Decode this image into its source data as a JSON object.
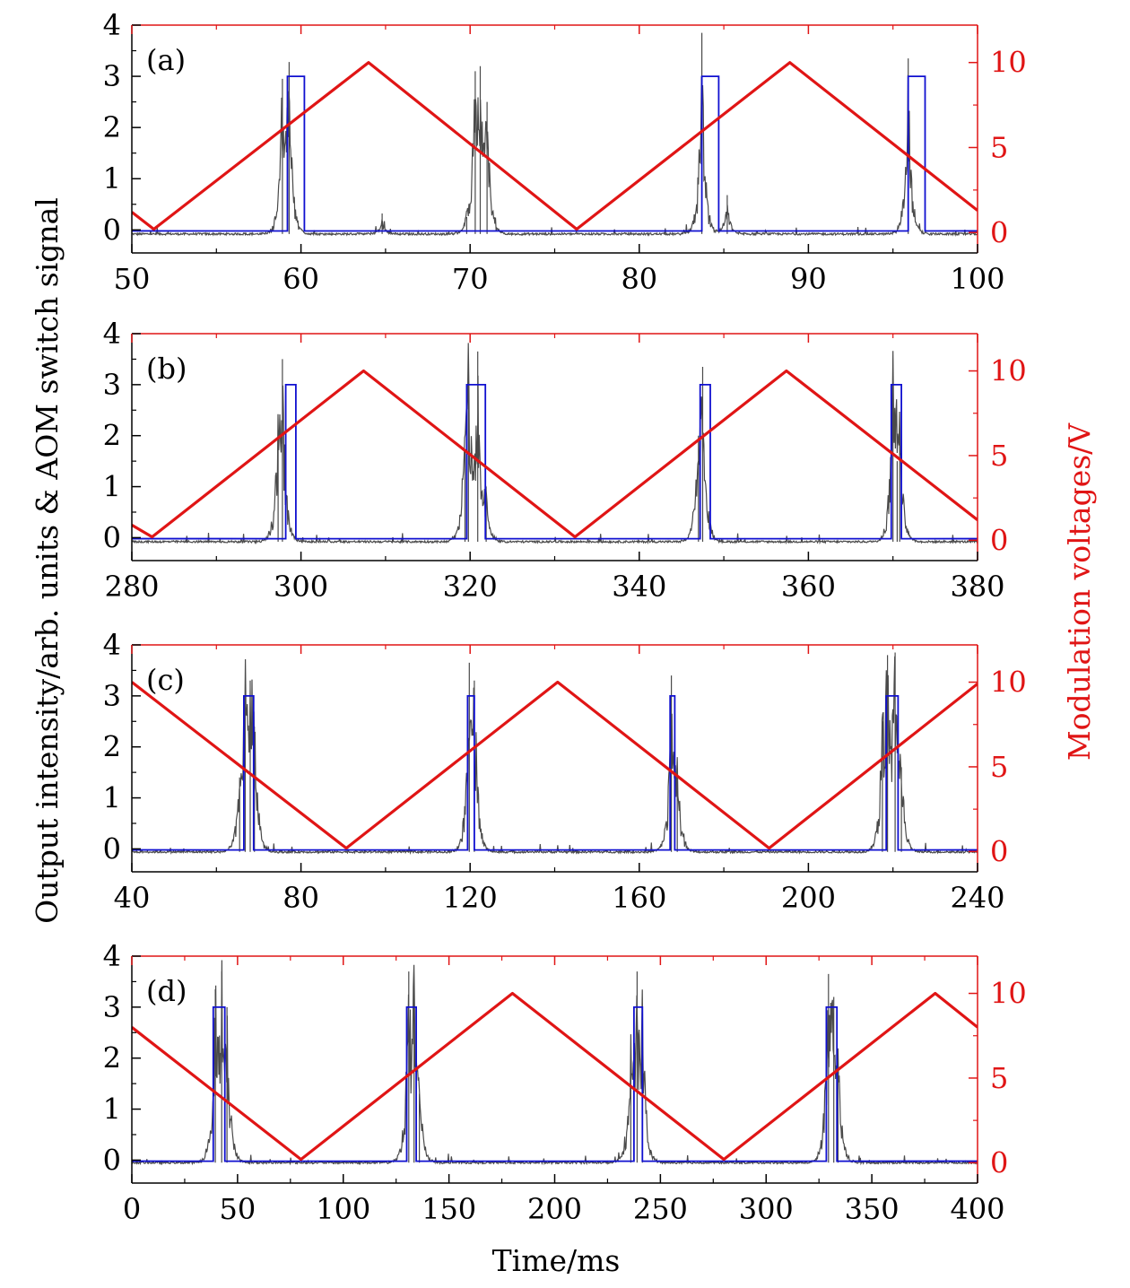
{
  "colors": {
    "intensity": "#4a4a4a",
    "aom": "#1010d0",
    "modulation": "#e01515",
    "axis_left": "#000000",
    "axis_right": "#e01515"
  },
  "figure": {
    "ylabel_left": "Output intensity/arb. units & AOM switch signal",
    "ylabel_right": "Modulation voltages/V",
    "xlabel": "Time/ms"
  },
  "chart_data": [
    {
      "type": "line",
      "panel_label": "(a)",
      "xlim": [
        50,
        100
      ],
      "x_ticks": [
        "50",
        "60",
        "70",
        "80",
        "90",
        "100"
      ],
      "ylim_left": [
        -0.45,
        4.0
      ],
      "y_ticks_left": [
        "0",
        "1",
        "2",
        "3",
        "4"
      ],
      "ylim_right": [
        -1.2,
        12.2
      ],
      "y_ticks_right": [
        "0",
        "5",
        "10"
      ],
      "grid": false,
      "series": [
        {
          "axis": "right",
          "color": "#e01515",
          "role": "modulation",
          "x": [
            50,
            51.3,
            64.0,
            76.3,
            88.9,
            100
          ],
          "y": [
            1.2,
            0.2,
            10.0,
            0.2,
            10.0,
            1.3
          ]
        },
        {
          "axis": "left",
          "color": "#1010d0",
          "role": "aom",
          "base": -0.02,
          "level": 3.0,
          "pulses": [
            [
              59.2,
              60.2
            ],
            [
              83.7,
              84.7
            ],
            [
              95.9,
              96.9
            ]
          ]
        },
        {
          "axis": "left",
          "color": "#4a4a4a",
          "role": "intensity",
          "baseline": -0.08,
          "peaks": [
            [
              58.9,
              2.95
            ],
            [
              59.3,
              3.28
            ],
            [
              70.3,
              3.1
            ],
            [
              70.6,
              3.2
            ],
            [
              71.0,
              2.5
            ],
            [
              83.7,
              3.85
            ],
            [
              85.2,
              0.68
            ],
            [
              95.9,
              3.35
            ],
            [
              64.8,
              0.32
            ],
            [
              69.8,
              0.25
            ]
          ]
        }
      ]
    },
    {
      "type": "line",
      "panel_label": "(b)",
      "xlim": [
        280,
        380
      ],
      "x_ticks": [
        "280",
        "300",
        "320",
        "340",
        "360",
        "380"
      ],
      "ylim_left": [
        -0.45,
        4.0
      ],
      "y_ticks_left": [
        "0",
        "1",
        "2",
        "3",
        "4"
      ],
      "ylim_right": [
        -1.2,
        12.2
      ],
      "y_ticks_right": [
        "0",
        "5",
        "10"
      ],
      "grid": false,
      "series": [
        {
          "axis": "right",
          "color": "#e01515",
          "role": "modulation",
          "x": [
            280,
            282.4,
            307.4,
            332.4,
            357.4,
            380
          ],
          "y": [
            0.9,
            0.2,
            10.0,
            0.2,
            10.0,
            1.2
          ]
        },
        {
          "axis": "left",
          "color": "#1010d0",
          "role": "aom",
          "base": -0.02,
          "level": 3.0,
          "pulses": [
            [
              298.2,
              299.4
            ],
            [
              319.6,
              321.8
            ],
            [
              347.2,
              348.4
            ],
            [
              369.8,
              371.0
            ]
          ]
        },
        {
          "axis": "left",
          "color": "#4a4a4a",
          "role": "intensity",
          "baseline": -0.08,
          "peaks": [
            [
              297.8,
              3.5
            ],
            [
              297.3,
              2.0
            ],
            [
              319.8,
              3.7
            ],
            [
              320.9,
              3.65
            ],
            [
              319.4,
              1.7
            ],
            [
              321.9,
              1.0
            ],
            [
              347.5,
              3.35
            ],
            [
              347.0,
              2.0
            ],
            [
              370.0,
              3.3
            ],
            [
              370.8,
              2.05
            ],
            [
              370.5,
              1.5
            ]
          ]
        }
      ]
    },
    {
      "type": "line",
      "panel_label": "(c)",
      "xlim": [
        40,
        240
      ],
      "x_ticks": [
        "40",
        "80",
        "120",
        "160",
        "200",
        "240"
      ],
      "ylim_left": [
        -0.45,
        4.0
      ],
      "y_ticks_left": [
        "0",
        "1",
        "2",
        "3",
        "4"
      ],
      "ylim_right": [
        -1.2,
        12.2
      ],
      "y_ticks_right": [
        "0",
        "5",
        "10"
      ],
      "grid": false,
      "series": [
        {
          "axis": "right",
          "color": "#e01515",
          "role": "modulation",
          "x": [
            40,
            90.7,
            140.7,
            190.7,
            240
          ],
          "y": [
            10.0,
            0.2,
            10.0,
            0.2,
            9.9
          ]
        },
        {
          "axis": "left",
          "color": "#1010d0",
          "role": "aom",
          "base": -0.02,
          "level": 3.0,
          "pulses": [
            [
              66.5,
              68.8
            ],
            [
              119.4,
              121.0
            ],
            [
              167.3,
              168.4
            ],
            [
              218.4,
              221.2
            ]
          ]
        },
        {
          "axis": "left",
          "color": "#4a4a4a",
          "role": "intensity",
          "baseline": -0.06,
          "peaks": [
            [
              66.8,
              3.3
            ],
            [
              68.0,
              3.3
            ],
            [
              69.0,
              2.4
            ],
            [
              65.5,
              1.4
            ],
            [
              119.8,
              3.65
            ],
            [
              121.0,
              3.3
            ],
            [
              167.6,
              3.4
            ],
            [
              169.0,
              1.8
            ],
            [
              218.7,
              3.8
            ],
            [
              220.5,
              3.85
            ],
            [
              217.5,
              2.5
            ],
            [
              222.0,
              1.6
            ]
          ]
        }
      ]
    },
    {
      "type": "line",
      "panel_label": "(d)",
      "xlim": [
        0,
        400
      ],
      "x_ticks": [
        "0",
        "50",
        "100",
        "150",
        "200",
        "250",
        "300",
        "350",
        "400"
      ],
      "ylim_left": [
        -0.45,
        4.0
      ],
      "y_ticks_left": [
        "0",
        "1",
        "2",
        "3",
        "4"
      ],
      "ylim_right": [
        -1.2,
        12.2
      ],
      "y_ticks_right": [
        "0",
        "5",
        "10"
      ],
      "grid": false,
      "series": [
        {
          "axis": "right",
          "color": "#e01515",
          "role": "modulation",
          "x": [
            0,
            80,
            180,
            280,
            380,
            400
          ],
          "y": [
            8.0,
            0.2,
            10.0,
            0.2,
            10.0,
            8.0
          ]
        },
        {
          "axis": "left",
          "color": "#1010d0",
          "role": "aom",
          "base": -0.02,
          "level": 3.0,
          "pulses": [
            [
              38.5,
              44.0
            ],
            [
              130.0,
              134.5
            ],
            [
              237.5,
              241.5
            ],
            [
              328.5,
              333.5
            ]
          ]
        },
        {
          "axis": "left",
          "color": "#4a4a4a",
          "role": "intensity",
          "baseline": -0.05,
          "peaks": [
            [
              39.5,
              3.35
            ],
            [
              42.5,
              3.7
            ],
            [
              45.0,
              3.0
            ],
            [
              131.0,
              3.7
            ],
            [
              133.5,
              3.6
            ],
            [
              136.0,
              1.3
            ],
            [
              239.0,
              3.7
            ],
            [
              241.5,
              3.0
            ],
            [
              236.0,
              2.2
            ],
            [
              329.5,
              3.65
            ],
            [
              332.0,
              3.2
            ],
            [
              334.0,
              2.0
            ]
          ]
        }
      ]
    }
  ]
}
